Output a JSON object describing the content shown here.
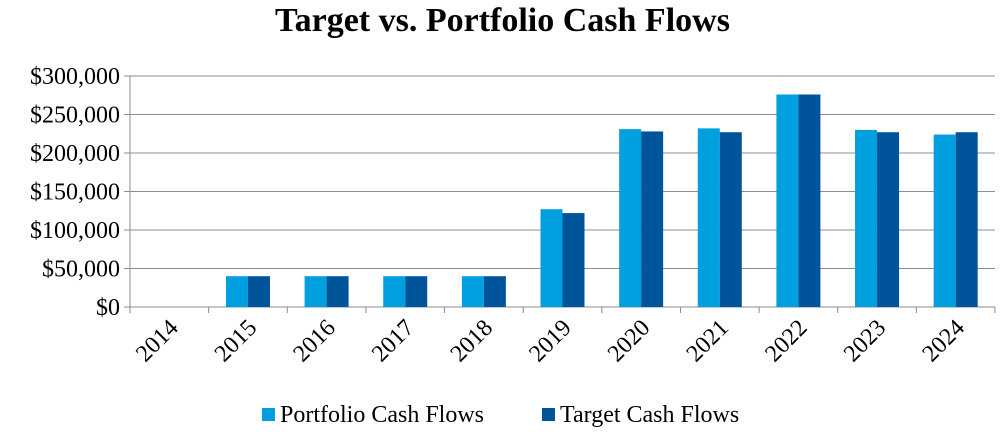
{
  "chart_data": {
    "type": "bar",
    "title": "Target vs. Portfolio Cash Flows",
    "xlabel": "",
    "ylabel": "",
    "categories": [
      "2014",
      "2015",
      "2016",
      "2017",
      "2018",
      "2019",
      "2020",
      "2021",
      "2022",
      "2023",
      "2024"
    ],
    "series": [
      {
        "name": "Portfolio Cash Flows",
        "color": "#00A0E0",
        "values": [
          0,
          40000,
          40000,
          40000,
          40000,
          127000,
          231000,
          232000,
          276000,
          230000,
          224000
        ]
      },
      {
        "name": "Target Cash Flows",
        "color": "#00549A",
        "values": [
          0,
          40000,
          40000,
          40000,
          40000,
          122000,
          228000,
          227000,
          276000,
          227000,
          227000
        ]
      }
    ],
    "ylim": [
      0,
      300000
    ],
    "yticks": [
      "$0",
      "$50,000",
      "$100,000",
      "$150,000",
      "$200,000",
      "$250,000",
      "$300,000"
    ],
    "ytick_values": [
      0,
      50000,
      100000,
      150000,
      200000,
      250000,
      300000
    ],
    "grid": true,
    "legend_position": "bottom"
  }
}
